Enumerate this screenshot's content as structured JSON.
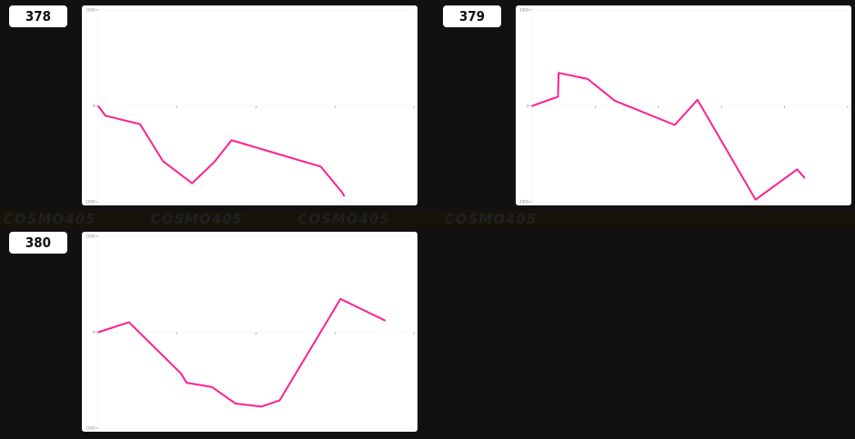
{
  "banner": {
    "logo_text": "COSMO405"
  },
  "line_color": "#ff1f8e",
  "chart_data": [
    {
      "type": "line",
      "id_label": "378",
      "ylim": [
        -1000,
        1000
      ],
      "yticks": [
        "1000",
        "0",
        "-1000"
      ],
      "xticks_count": 5,
      "xlim": [
        0,
        4
      ],
      "grid": true,
      "x": [
        0,
        0.09,
        0.53,
        0.82,
        1.19,
        1.47,
        1.69,
        2.82,
        3.09,
        3.12
      ],
      "values": [
        0,
        -102,
        -191,
        -576,
        -807,
        -586,
        -358,
        -633,
        -902,
        -943
      ]
    },
    {
      "type": "line",
      "id_label": "379",
      "ylim": [
        -1000,
        1000
      ],
      "yticks": [
        "1000",
        "0",
        "-1000"
      ],
      "xticks_count": 6,
      "xlim": [
        0,
        5
      ],
      "grid": true,
      "x": [
        0,
        0.41,
        0.42,
        0.88,
        1.31,
        2.26,
        2.62,
        3.54,
        4.2,
        4.32
      ],
      "values": [
        0,
        95,
        344,
        281,
        54,
        -199,
        63,
        -978,
        -662,
        -754
      ]
    },
    {
      "type": "line",
      "id_label": "380",
      "ylim": [
        -1000,
        1000
      ],
      "yticks": [
        "1000",
        "0",
        "-1000"
      ],
      "xticks_count": 5,
      "xlim": [
        0,
        4
      ],
      "grid": true,
      "x": [
        0,
        0.39,
        1.05,
        1.12,
        1.44,
        1.74,
        2.07,
        2.3,
        3.07,
        3.64
      ],
      "values": [
        0,
        104,
        -432,
        -527,
        -571,
        -744,
        -776,
        -710,
        347,
        120
      ]
    }
  ]
}
